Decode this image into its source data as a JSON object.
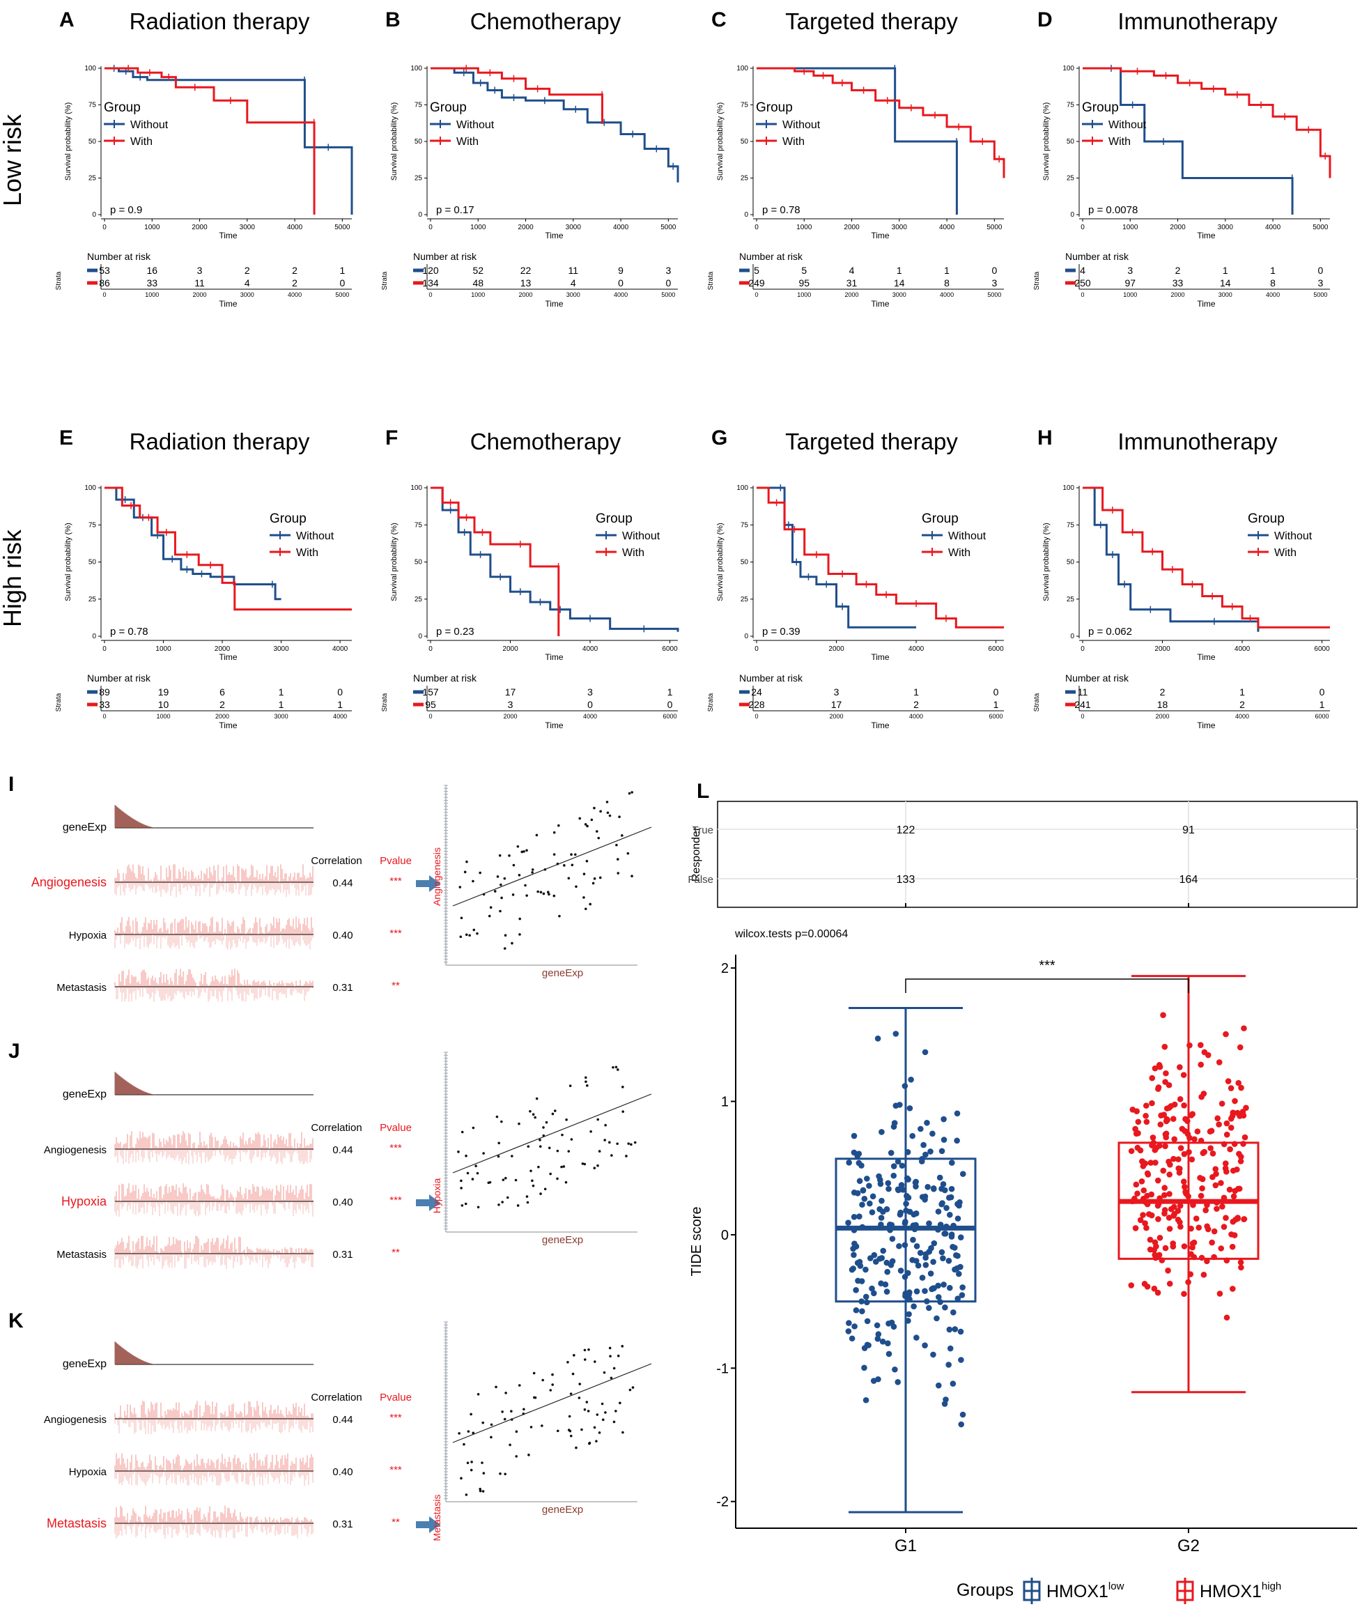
{
  "figure": {
    "panel_letters": [
      "A",
      "B",
      "C",
      "D",
      "E",
      "F",
      "G",
      "H",
      "I",
      "J",
      "K",
      "L"
    ],
    "row_labels": {
      "low": "Low risk",
      "high": "High risk"
    },
    "colors": {
      "blue": "#1f4e8c",
      "red": "#e8181e",
      "grey": "#555555",
      "arrow": "#4a7fb0",
      "heat": "#e8564e",
      "bar": "#8b3a30"
    }
  },
  "km_common": {
    "ylabel": "Survival probability (%)",
    "xlabel": "Time",
    "yticks": [
      "0",
      "25",
      "50",
      "75",
      "100"
    ],
    "legend_title": "Group",
    "legend_items": [
      "Without",
      "With"
    ],
    "risk_title": "Number at risk",
    "strata_label": "Strata"
  },
  "chart_data": [
    {
      "type": "line",
      "panel": "A",
      "title": "Radiation therapy",
      "xlim": [
        0,
        5200
      ],
      "xticks": [
        0,
        1000,
        2000,
        3000,
        4000,
        5000
      ],
      "pvalue": "p = 0.9",
      "legend_pos": "left",
      "series": [
        {
          "name": "Without",
          "x": [
            0,
            100,
            300,
            600,
            900,
            1200,
            4200,
            4210,
            5200
          ],
          "y": [
            100,
            100,
            98,
            94,
            92,
            92,
            92,
            46,
            0
          ]
        },
        {
          "name": "With",
          "x": [
            0,
            300,
            700,
            1200,
            1500,
            2300,
            3000,
            4400,
            4410
          ],
          "y": [
            100,
            100,
            97,
            94,
            87,
            78,
            63,
            63,
            0
          ]
        }
      ],
      "risk_times": [
        "0",
        "1000",
        "2000",
        "3000",
        "4000",
        "5000"
      ],
      "risk": [
        [
          "53",
          "16",
          "3",
          "2",
          "2",
          "1"
        ],
        [
          "86",
          "33",
          "11",
          "4",
          "2",
          "0"
        ]
      ]
    },
    {
      "type": "line",
      "panel": "B",
      "title": "Chemotherapy",
      "xlim": [
        0,
        5200
      ],
      "xticks": [
        0,
        1000,
        2000,
        3000,
        4000,
        5000
      ],
      "pvalue": "p = 0.17",
      "legend_pos": "left",
      "series": [
        {
          "name": "Without",
          "x": [
            0,
            500,
            900,
            1200,
            1500,
            2000,
            2800,
            3300,
            4000,
            4500,
            5000,
            5200
          ],
          "y": [
            100,
            97,
            90,
            85,
            80,
            78,
            72,
            63,
            55,
            45,
            33,
            22
          ]
        },
        {
          "name": "With",
          "x": [
            0,
            500,
            1000,
            1500,
            2000,
            2500,
            3000,
            3500,
            3600,
            3610
          ],
          "y": [
            100,
            100,
            97,
            93,
            86,
            82,
            82,
            82,
            82,
            62
          ]
        }
      ],
      "risk_times": [
        "0",
        "1000",
        "2000",
        "3000",
        "4000",
        "5000"
      ],
      "risk": [
        [
          "120",
          "52",
          "22",
          "11",
          "9",
          "3"
        ],
        [
          "134",
          "48",
          "13",
          "4",
          "0",
          "0"
        ]
      ]
    },
    {
      "type": "line",
      "panel": "C",
      "title": "Targeted therapy",
      "xlim": [
        0,
        5200
      ],
      "xticks": [
        0,
        1000,
        2000,
        3000,
        4000,
        5000
      ],
      "pvalue": "p = 0.78",
      "legend_pos": "left",
      "series": [
        {
          "name": "Without",
          "x": [
            0,
            2900,
            2910,
            4200,
            4210
          ],
          "y": [
            100,
            100,
            50,
            50,
            0
          ]
        },
        {
          "name": "With",
          "x": [
            0,
            800,
            1200,
            1600,
            2000,
            2500,
            3000,
            3500,
            4000,
            4500,
            5000,
            5200
          ],
          "y": [
            100,
            98,
            95,
            90,
            85,
            78,
            73,
            68,
            60,
            50,
            38,
            25
          ]
        }
      ],
      "risk_times": [
        "0",
        "1000",
        "2000",
        "3000",
        "4000",
        "5000"
      ],
      "risk": [
        [
          "5",
          "5",
          "4",
          "1",
          "1",
          "0"
        ],
        [
          "249",
          "95",
          "31",
          "14",
          "8",
          "3"
        ]
      ]
    },
    {
      "type": "line",
      "panel": "D",
      "title": "Immunotherapy",
      "xlim": [
        0,
        5200
      ],
      "xticks": [
        0,
        1000,
        2000,
        3000,
        4000,
        5000
      ],
      "pvalue": "p = 0.0078",
      "legend_pos": "left",
      "series": [
        {
          "name": "Without",
          "x": [
            0,
            400,
            800,
            1300,
            2100,
            4400,
            4410
          ],
          "y": [
            100,
            100,
            75,
            50,
            25,
            25,
            0
          ]
        },
        {
          "name": "With",
          "x": [
            0,
            800,
            1500,
            2000,
            2500,
            3000,
            3500,
            4000,
            4500,
            5000,
            5200
          ],
          "y": [
            100,
            98,
            95,
            90,
            86,
            82,
            75,
            67,
            58,
            40,
            25
          ]
        }
      ],
      "risk_times": [
        "0",
        "1000",
        "2000",
        "3000",
        "4000",
        "5000"
      ],
      "risk": [
        [
          "4",
          "3",
          "2",
          "1",
          "1",
          "0"
        ],
        [
          "250",
          "97",
          "33",
          "14",
          "8",
          "3"
        ]
      ]
    },
    {
      "type": "line",
      "panel": "E",
      "title": "Radiation therapy",
      "xlim": [
        0,
        4200
      ],
      "xticks": [
        0,
        1000,
        2000,
        3000,
        4000
      ],
      "pvalue": "p = 0.78",
      "legend_pos": "right",
      "series": [
        {
          "name": "Without",
          "x": [
            0,
            200,
            500,
            800,
            1000,
            1300,
            1500,
            1800,
            2200,
            2800,
            2900,
            3000
          ],
          "y": [
            100,
            92,
            80,
            68,
            52,
            45,
            42,
            40,
            35,
            35,
            25,
            25
          ]
        },
        {
          "name": "With",
          "x": [
            0,
            300,
            600,
            900,
            1200,
            1600,
            2000,
            2200,
            2210,
            4200
          ],
          "y": [
            100,
            88,
            80,
            70,
            55,
            48,
            36,
            36,
            18,
            18
          ]
        }
      ],
      "risk_times": [
        "0",
        "1000",
        "2000",
        "3000",
        "4000"
      ],
      "risk": [
        [
          "89",
          "19",
          "6",
          "1",
          "0"
        ],
        [
          "33",
          "10",
          "2",
          "1",
          "1"
        ]
      ]
    },
    {
      "type": "line",
      "panel": "F",
      "title": "Chemotherapy",
      "xlim": [
        0,
        6200
      ],
      "xticks": [
        0,
        2000,
        4000,
        6000
      ],
      "pvalue": "p = 0.23",
      "legend_pos": "right",
      "series": [
        {
          "name": "Without",
          "x": [
            0,
            300,
            700,
            1000,
            1500,
            2000,
            2500,
            3000,
            3500,
            4500,
            6200
          ],
          "y": [
            100,
            85,
            70,
            55,
            40,
            30,
            23,
            18,
            12,
            5,
            3
          ]
        },
        {
          "name": "With",
          "x": [
            0,
            300,
            700,
            1100,
            1500,
            2000,
            2500,
            3200,
            3210
          ],
          "y": [
            100,
            90,
            80,
            70,
            62,
            62,
            47,
            47,
            0
          ]
        }
      ],
      "risk_times": [
        "0",
        "2000",
        "4000",
        "6000"
      ],
      "risk": [
        [
          "157",
          "17",
          "3",
          "1"
        ],
        [
          "95",
          "3",
          "0",
          "0"
        ]
      ]
    },
    {
      "type": "line",
      "panel": "G",
      "title": "Targeted therapy",
      "xlim": [
        0,
        6200
      ],
      "xticks": [
        0,
        2000,
        4000,
        6000
      ],
      "pvalue": "p = 0.39",
      "legend_pos": "right",
      "series": [
        {
          "name": "Without",
          "x": [
            0,
            500,
            700,
            900,
            1100,
            1500,
            2000,
            2300,
            4000
          ],
          "y": [
            100,
            100,
            75,
            50,
            40,
            35,
            20,
            6,
            6
          ]
        },
        {
          "name": "With",
          "x": [
            0,
            300,
            700,
            1200,
            1800,
            2500,
            3000,
            3500,
            4500,
            5000,
            6200
          ],
          "y": [
            100,
            90,
            72,
            55,
            42,
            35,
            28,
            22,
            12,
            6,
            6
          ]
        }
      ],
      "risk_times": [
        "0",
        "2000",
        "4000",
        "6000"
      ],
      "risk": [
        [
          "24",
          "3",
          "1",
          "0"
        ],
        [
          "228",
          "17",
          "2",
          "1"
        ]
      ]
    },
    {
      "type": "line",
      "panel": "H",
      "title": "Immunotherapy",
      "xlim": [
        0,
        6200
      ],
      "xticks": [
        0,
        2000,
        4000,
        6000
      ],
      "pvalue": "p = 0.062",
      "legend_pos": "right",
      "series": [
        {
          "name": "Without",
          "x": [
            0,
            300,
            600,
            900,
            1200,
            2200,
            4400
          ],
          "y": [
            100,
            75,
            55,
            35,
            18,
            10,
            3
          ]
        },
        {
          "name": "With",
          "x": [
            0,
            500,
            1000,
            1500,
            2000,
            2500,
            3000,
            3500,
            4000,
            4400,
            6200
          ],
          "y": [
            100,
            85,
            70,
            57,
            45,
            35,
            27,
            20,
            12,
            6,
            6
          ]
        }
      ],
      "risk_times": [
        "0",
        "2000",
        "4000",
        "6000"
      ],
      "risk": [
        [
          "11",
          "2",
          "1",
          "0"
        ],
        [
          "241",
          "18",
          "2",
          "1"
        ]
      ]
    },
    {
      "type": "heatmap",
      "panel": "I",
      "highlight": "Angiogenesis",
      "genes": [
        "geneExp",
        "Angiogenesis",
        "Hypoxia",
        "Metastasis"
      ],
      "correlation": [
        "0.44",
        "0.40",
        "0.31"
      ],
      "pvalue": [
        "***",
        "***",
        "**"
      ],
      "col_labels": [
        "Correlation",
        "Pvalue"
      ],
      "scatter_xlabel": "geneExp",
      "scatter_ylabel": "Angiogenesis"
    },
    {
      "type": "heatmap",
      "panel": "J",
      "highlight": "Hypoxia",
      "genes": [
        "geneExp",
        "Angiogenesis",
        "Hypoxia",
        "Metastasis"
      ],
      "correlation": [
        "0.44",
        "0.40",
        "0.31"
      ],
      "pvalue": [
        "***",
        "***",
        "**"
      ],
      "col_labels": [
        "Correlation",
        "Pvalue"
      ],
      "scatter_xlabel": "geneExp",
      "scatter_ylabel": "Hypoxia"
    },
    {
      "type": "heatmap",
      "panel": "K",
      "highlight": "Metastasis",
      "genes": [
        "geneExp",
        "Angiogenesis",
        "Hypoxia",
        "Metastasis"
      ],
      "correlation": [
        "0.44",
        "0.40",
        "0.31"
      ],
      "pvalue": [
        "***",
        "***",
        "**"
      ],
      "col_labels": [
        "Correlation",
        "Pvalue"
      ],
      "scatter_xlabel": "geneExp",
      "scatter_ylabel": "Metastasis"
    },
    {
      "type": "table",
      "panel": "L-top",
      "ylabel": "Responder",
      "rows": [
        "True",
        "False"
      ],
      "columns": [
        "G1",
        "G2"
      ],
      "values": [
        [
          "122",
          "91"
        ],
        [
          "133",
          "164"
        ]
      ]
    },
    {
      "type": "scatter",
      "panel": "L",
      "subtitle": "wilcox.tests p=0.00064",
      "signif": "***",
      "ylabel": "TIDE score",
      "yticks": [
        "-2",
        "-1",
        "0",
        "1",
        "2"
      ],
      "ylim": [
        -2.2,
        2.1
      ],
      "categories": [
        "G1",
        "G2"
      ],
      "boxes": [
        {
          "name": "G1",
          "min": -2.08,
          "q1": -0.5,
          "median": 0.05,
          "q3": 0.57,
          "max": 1.7
        },
        {
          "name": "G2",
          "min": -1.18,
          "q1": -0.18,
          "median": 0.25,
          "q3": 0.69,
          "max": 1.94
        }
      ],
      "legend_title": "Groups",
      "legend": [
        {
          "name": "HMOX1",
          "sup": "low"
        },
        {
          "name": "HMOX1",
          "sup": "high"
        }
      ]
    }
  ]
}
